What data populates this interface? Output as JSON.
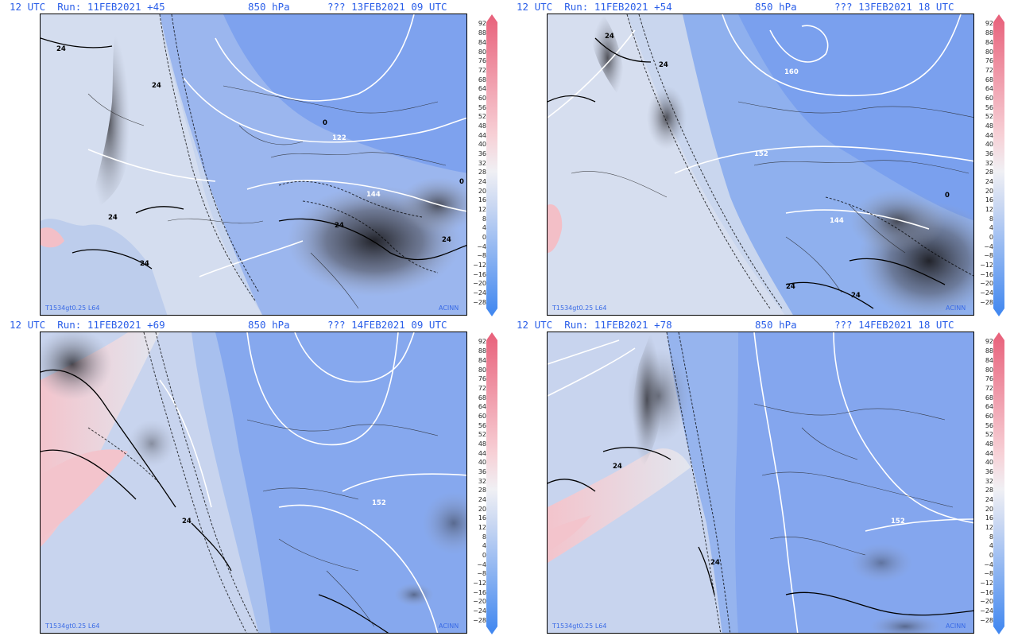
{
  "colors": {
    "header_text": "#2a5ee8",
    "credit_text": "#3a6be6",
    "deep_blue": "#6f98ee",
    "mid_blue": "#9bb6ee",
    "pale_blue": "#c6d4ee",
    "neutral": "#e9ecf2",
    "pink": "#f3bfc7",
    "dark_cloud": "#2b2b30"
  },
  "colorbar": {
    "ticks": [
      "92",
      "88",
      "84",
      "80",
      "76",
      "72",
      "68",
      "64",
      "60",
      "56",
      "52",
      "48",
      "44",
      "40",
      "36",
      "32",
      "28",
      "24",
      "20",
      "16",
      "12",
      "8",
      "4",
      "0",
      "−4",
      "−8",
      "−12",
      "−16",
      "−20",
      "−24",
      "−28"
    ]
  },
  "panels": [
    {
      "header": {
        "run": "12 UTC  Run: 11FEB2021 +45",
        "level": "850 hPa",
        "valid": "??? 13FEB2021 09 UTC"
      },
      "credit_left": "T1534gt0.25 L64",
      "credit_right": "ACINN",
      "contour_labels": [
        "24",
        "24",
        "24",
        "24",
        "24",
        "24",
        "122",
        "144",
        "0",
        "0"
      ]
    },
    {
      "header": {
        "run": "12 UTC  Run: 11FEB2021 +54",
        "level": "850 hPa",
        "valid": "??? 13FEB2021 18 UTC"
      },
      "credit_left": "T1534gt0.25 L64",
      "credit_right": "ACINN",
      "contour_labels": [
        "24",
        "24",
        "24",
        "24",
        "160",
        "152",
        "144",
        "0"
      ]
    },
    {
      "header": {
        "run": "12 UTC  Run: 11FEB2021 +69",
        "level": "850 hPa",
        "valid": "??? 14FEB2021 09 UTC"
      },
      "credit_left": "T1534gt0.25 L64",
      "credit_right": "ACINN",
      "contour_labels": [
        "24",
        "152"
      ]
    },
    {
      "header": {
        "run": "12 UTC  Run: 11FEB2021 +78",
        "level": "850 hPa",
        "valid": "??? 14FEB2021 18 UTC"
      },
      "credit_left": "T1534gt0.25 L64",
      "credit_right": "ACINN",
      "contour_labels": [
        "24",
        "24",
        "152"
      ]
    }
  ]
}
